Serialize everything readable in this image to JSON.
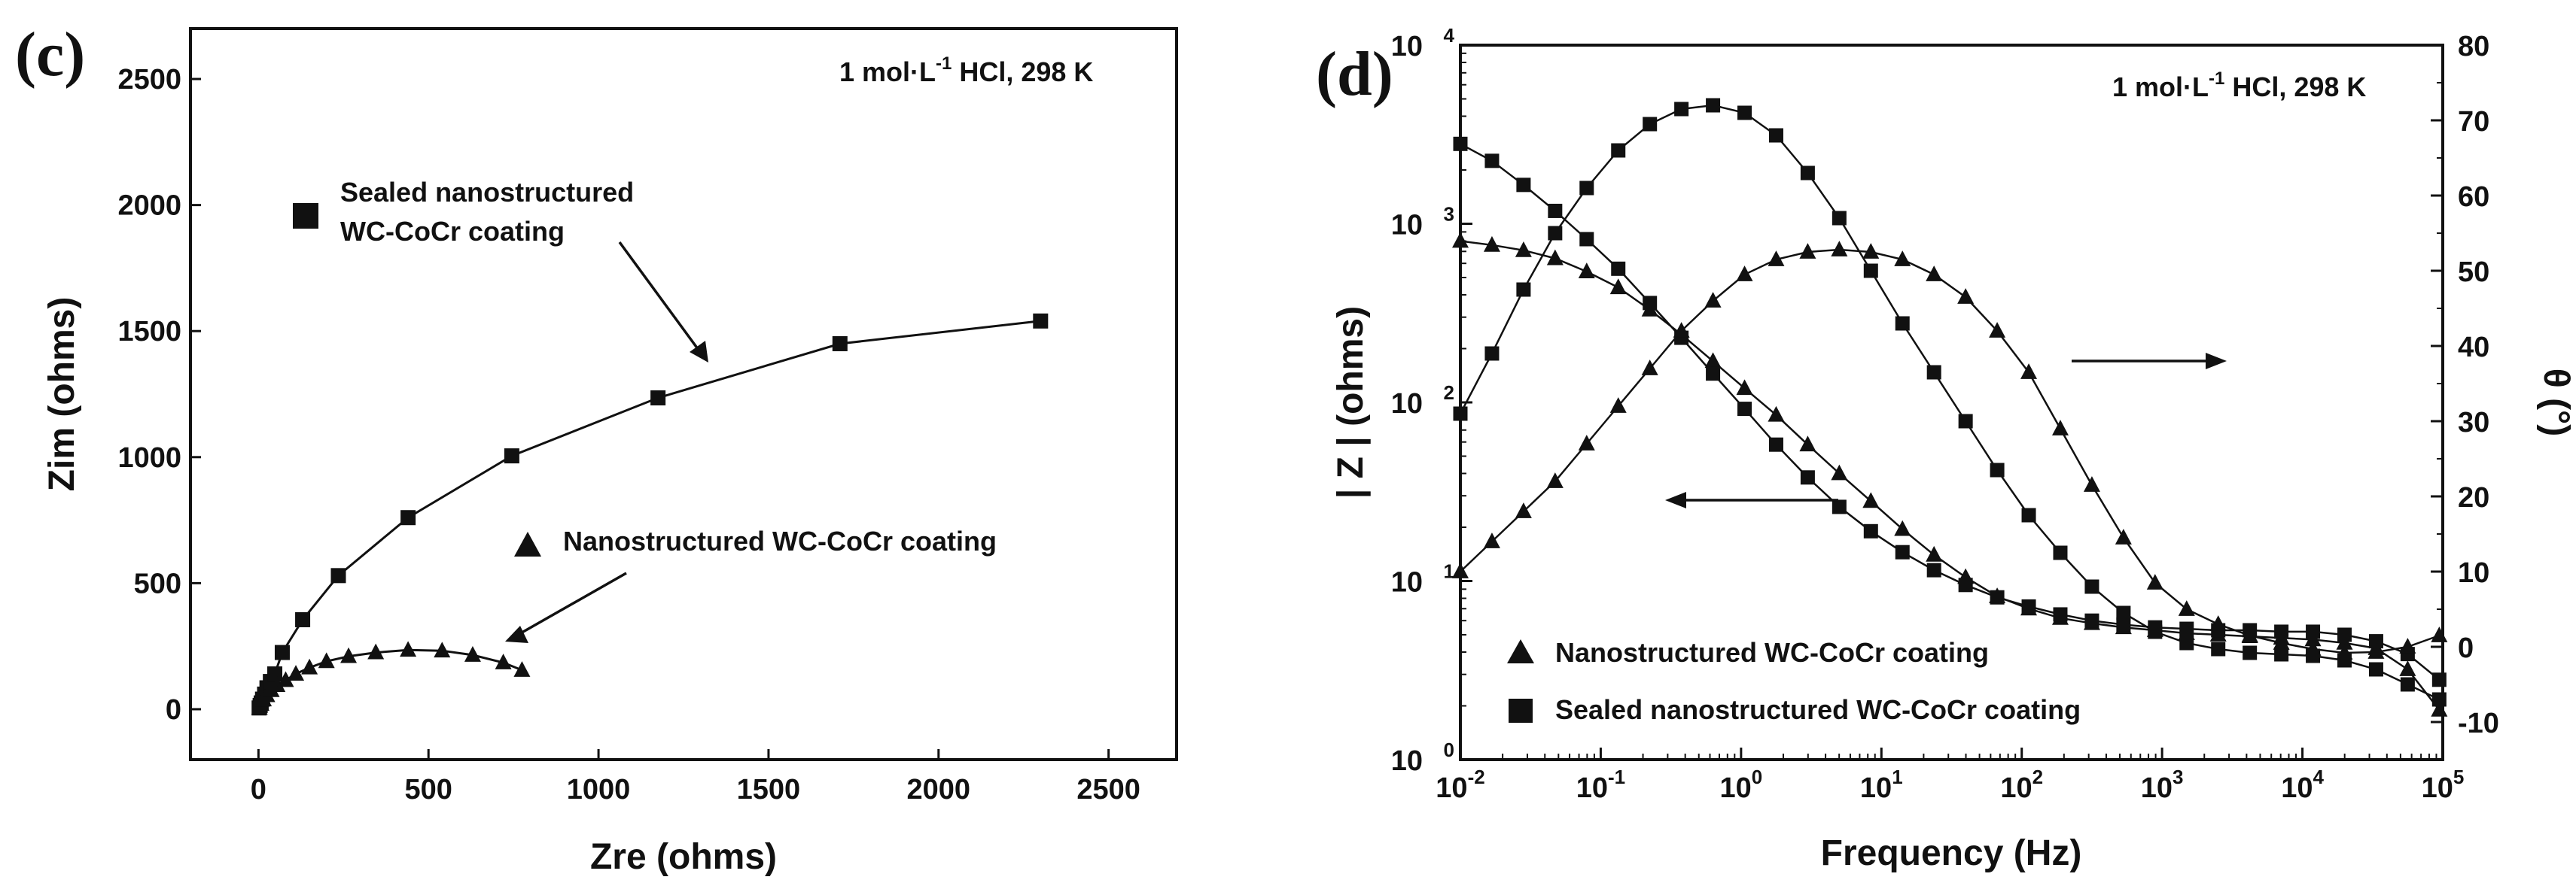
{
  "chart_data": [
    {
      "type": "line",
      "panel_label": "(c)",
      "annotation": "1 mol·L-1 HCl, 298 K",
      "annotation_parts": {
        "main": "1 mol·L",
        "sup": "-1",
        "rest": " HCl, 298 K"
      },
      "xlabel": "Zre (ohms)",
      "ylabel": "Zim (ohms)",
      "xlim": [
        -200,
        2700
      ],
      "ylim": [
        -200,
        2700
      ],
      "xticks": [
        0,
        500,
        1000,
        1500,
        2000,
        2500
      ],
      "yticks": [
        0,
        500,
        1000,
        1500,
        2000,
        2500
      ],
      "xtick_labels": [
        "0",
        "500",
        "1000",
        "1500",
        "2000",
        "2500"
      ],
      "ytick_labels": [
        "0",
        "500",
        "1000",
        "1500",
        "2000",
        "2500"
      ],
      "series": [
        {
          "name": "Sealed nanostructured WC-CoCr coating",
          "legend_lines": [
            "Sealed nanostructured",
            "WC-CoCr coating"
          ],
          "marker": "square",
          "x": [
            2,
            5,
            8,
            12,
            18,
            25,
            35,
            48,
            70,
            130,
            235,
            440,
            745,
            1175,
            1710,
            2300
          ],
          "y": [
            5,
            15,
            25,
            40,
            60,
            85,
            110,
            140,
            225,
            355,
            530,
            760,
            1005,
            1235,
            1450,
            1540
          ]
        },
        {
          "name": "Nanostructured WC-CoCr coating",
          "legend_lines": [
            "Nanostructured WC-CoCr coating"
          ],
          "marker": "triangle",
          "x": [
            3,
            8,
            15,
            25,
            38,
            55,
            80,
            110,
            150,
            200,
            265,
            345,
            440,
            540,
            630,
            720,
            775
          ],
          "y": [
            5,
            20,
            38,
            55,
            75,
            95,
            115,
            140,
            165,
            190,
            210,
            225,
            235,
            232,
            215,
            185,
            155
          ]
        }
      ]
    },
    {
      "type": "line",
      "panel_label": "(d)",
      "annotation": "1 mol·L-1 HCl, 298 K",
      "annotation_parts": {
        "main": "1 mol·L",
        "sup": "-1",
        "rest": " HCl, 298 K"
      },
      "xlabel": "Frequency (Hz)",
      "ylabel_left": "| Z | (ohms)",
      "ylabel_right": "θ (°)",
      "xscale": "log",
      "xlim_exp": [
        -2,
        5
      ],
      "ylim_left_exp": [
        0,
        4
      ],
      "ylim_right": [
        -15,
        80
      ],
      "xtick_exponents": [
        "-2",
        "-1",
        "0",
        "1",
        "2",
        "3",
        "4",
        "5"
      ],
      "ytick_left_exponents": [
        "0",
        "1",
        "2",
        "3",
        "4"
      ],
      "ytick_right": [
        -10,
        0,
        10,
        20,
        30,
        40,
        50,
        60,
        70,
        80
      ],
      "ytick_right_labels": [
        "-10",
        "0",
        "10",
        "20",
        "30",
        "40",
        "50",
        "60",
        "70",
        "80"
      ],
      "tick_base": "10",
      "log_f": [
        -2.0,
        -1.775,
        -1.55,
        -1.325,
        -1.1,
        -0.875,
        -0.65,
        -0.425,
        -0.2,
        0.025,
        0.25,
        0.475,
        0.7,
        0.925,
        1.15,
        1.375,
        1.6,
        1.825,
        2.05,
        2.275,
        2.5,
        2.725,
        2.95,
        3.175,
        3.4,
        3.625,
        3.85,
        4.075,
        4.3,
        4.525,
        4.75,
        4.975
      ],
      "series": [
        {
          "name": "Nanostructured WC-CoCr coating",
          "quantity": "|Z|",
          "axis": "left",
          "marker": "triangle",
          "values_ohm": [
            800,
            760,
            710,
            640,
            540,
            440,
            330,
            240,
            170,
            120,
            85,
            58,
            40,
            28,
            19.5,
            14,
            10.5,
            8.2,
            7,
            6.2,
            5.8,
            5.5,
            5.3,
            5.1,
            5.0,
            4.9,
            4.8,
            4.7,
            4.5,
            4.2,
            3.2,
            1.9
          ]
        },
        {
          "name": "Sealed nanostructured WC-CoCr coating",
          "quantity": "|Z|",
          "axis": "left",
          "marker": "square",
          "values_ohm": [
            2800,
            2250,
            1650,
            1180,
            820,
            560,
            360,
            230,
            145,
            92,
            58,
            38,
            26,
            19,
            14.5,
            11.5,
            9.5,
            8.1,
            7.2,
            6.5,
            6.0,
            5.7,
            5.5,
            5.4,
            5.3,
            5.3,
            5.2,
            5.2,
            5.0,
            4.6,
            3.9,
            2.8
          ]
        },
        {
          "name": "Nanostructured WC-CoCr coating",
          "quantity": "θ",
          "axis": "right",
          "marker": "triangle",
          "values_deg": [
            10,
            14,
            18,
            22,
            27,
            32,
            37,
            42,
            46,
            49.5,
            51.5,
            52.5,
            52.8,
            52.5,
            51.5,
            49.5,
            46.5,
            42,
            36.5,
            29,
            21.5,
            14.5,
            8.5,
            5,
            3,
            1.5,
            0.5,
            -0.3,
            -0.8,
            -0.7,
            0,
            1.5
          ]
        },
        {
          "name": "Sealed nanostructured WC-CoCr coating",
          "quantity": "θ",
          "axis": "right",
          "marker": "square",
          "values_deg": [
            31,
            39,
            47.5,
            55,
            61,
            66,
            69.5,
            71.5,
            72,
            71,
            68,
            63,
            57,
            50,
            43,
            36.5,
            30,
            23.5,
            17.5,
            12.5,
            8,
            4.5,
            2,
            0.5,
            -0.3,
            -0.8,
            -1,
            -1.2,
            -1.8,
            -3,
            -5,
            -7
          ]
        }
      ]
    }
  ]
}
